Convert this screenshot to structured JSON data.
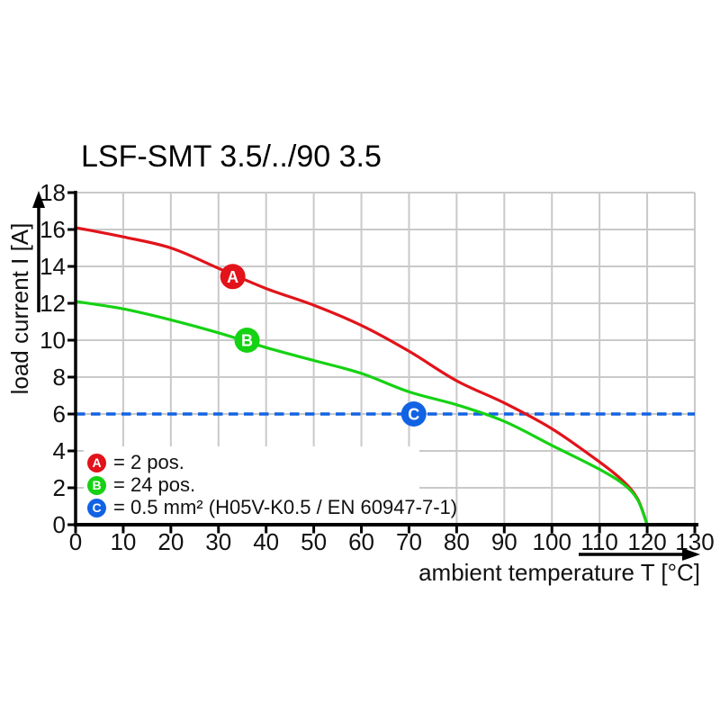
{
  "title": "LSF-SMT 3.5/../90 3.5",
  "colors": {
    "curve_a_red": "#e2131a",
    "curve_b_green": "#15d213",
    "limit_c_blue": "#1263e3",
    "grid": "#c9c9c9",
    "axis": "#000000"
  },
  "legend": {
    "items": [
      {
        "key": "A",
        "color": "#e2131a",
        "label": "= 2 pos."
      },
      {
        "key": "B",
        "color": "#15d213",
        "label": "= 24 pos."
      },
      {
        "key": "C",
        "color": "#1263e3",
        "label": "= 0.5 mm² (H05V-K0.5 / EN 60947-7-1)"
      }
    ]
  },
  "chart_data": {
    "type": "line",
    "title": "LSF-SMT 3.5/../90 3.5",
    "xlabel": "ambient temperature T [°C]",
    "ylabel": "load current I [A]",
    "xlim": [
      0,
      130
    ],
    "ylim": [
      0,
      18
    ],
    "x_ticks": [
      0,
      10,
      20,
      30,
      40,
      50,
      60,
      70,
      80,
      90,
      100,
      110,
      120,
      130
    ],
    "y_ticks": [
      0,
      2,
      4,
      6,
      8,
      10,
      12,
      14,
      16,
      18
    ],
    "grid": true,
    "x": [
      0,
      10,
      20,
      30,
      40,
      50,
      60,
      70,
      80,
      90,
      100,
      110,
      115,
      118,
      120
    ],
    "series": [
      {
        "key": "A",
        "name": "2 pos.",
        "color": "#e2131a",
        "line": "solid",
        "values": [
          16.1,
          15.6,
          15.0,
          13.9,
          12.8,
          11.9,
          10.8,
          9.4,
          7.8,
          6.6,
          5.2,
          3.4,
          2.35,
          1.4,
          0
        ]
      },
      {
        "key": "B",
        "name": "24 pos.",
        "color": "#15d213",
        "line": "solid",
        "values": [
          12.1,
          11.7,
          11.1,
          10.4,
          9.6,
          8.9,
          8.2,
          7.2,
          6.5,
          5.6,
          4.3,
          3.0,
          2.2,
          1.35,
          0
        ]
      },
      {
        "key": "C",
        "name": "0.5 mm² (H05V-K0.5 / EN 60947-7-1)",
        "color": "#1263e3",
        "line": "dashed",
        "constant": 6
      }
    ],
    "point_markers": [
      {
        "key": "A",
        "x": 33,
        "y": 13.45,
        "color": "#e2131a"
      },
      {
        "key": "B",
        "x": 36,
        "y": 10,
        "color": "#15d213"
      },
      {
        "key": "C",
        "x": 71,
        "y": 6,
        "color": "#1263e3"
      }
    ]
  }
}
